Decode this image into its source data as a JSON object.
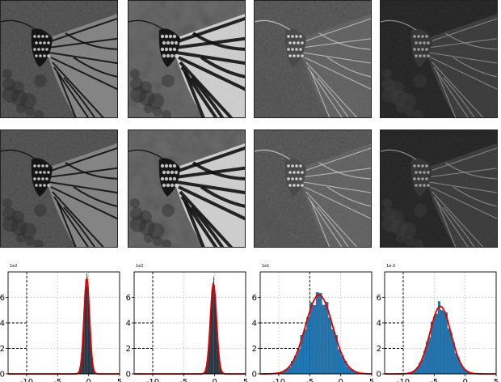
{
  "figure": {
    "rows": [
      {
        "name": "row-1-images"
      },
      {
        "name": "row-2-images"
      }
    ],
    "image_styles": [
      {
        "style": "noisy"
      },
      {
        "style": "sharp"
      },
      {
        "style": "edge"
      },
      {
        "style": "edge-fine"
      }
    ]
  },
  "chart_data": [
    {
      "type": "bar",
      "title": "",
      "exponent_label": "1e2",
      "xlim": [
        -13,
        5
      ],
      "ylim": [
        0,
        8
      ],
      "xticks": [
        "-10",
        "-5",
        "0",
        "5"
      ],
      "xtick_values": [
        -10,
        -5,
        0,
        5
      ],
      "yticks": [
        "0",
        "2",
        "4",
        "6"
      ],
      "ytick_values": [
        0,
        2,
        4,
        6
      ],
      "bar_color": "#1f1f1f",
      "curve_color": "#e00000",
      "curve": {
        "mean": -0.3,
        "std": 0.45,
        "peak": 7.5
      },
      "vline_x": -10,
      "hline_y": [
        2,
        4
      ]
    },
    {
      "type": "bar",
      "title": "",
      "exponent_label": "1e2",
      "xlim": [
        -13,
        5
      ],
      "ylim": [
        0,
        8
      ],
      "xticks": [
        "-10",
        "-5",
        "0",
        "5"
      ],
      "xtick_values": [
        -10,
        -5,
        0,
        5
      ],
      "yticks": [
        "0",
        "2",
        "4",
        "6"
      ],
      "ytick_values": [
        0,
        2,
        4,
        6
      ],
      "bar_color": "#1f1f1f",
      "curve_color": "#e00000",
      "curve": {
        "mean": -0.2,
        "std": 0.5,
        "peak": 7.1
      },
      "vline_x": -10,
      "hline_y": [
        2,
        4
      ]
    },
    {
      "type": "bar",
      "title": "",
      "exponent_label": "1e1",
      "xlim": [
        -13,
        5
      ],
      "ylim": [
        0,
        8
      ],
      "xticks": [
        "-10",
        "-5",
        "0",
        "5"
      ],
      "xtick_values": [
        -10,
        -5,
        0,
        5
      ],
      "yticks": [
        "0",
        "2",
        "4",
        "6"
      ],
      "ytick_values": [
        0,
        2,
        4,
        6
      ],
      "bar_color": "#1f77b4",
      "curve_color": "#e00000",
      "curve": {
        "mean": -3.5,
        "std": 2.2,
        "peak": 6.2
      },
      "vline_x": -5,
      "hline_y": [
        2,
        4
      ]
    },
    {
      "type": "bar",
      "title": "",
      "exponent_label": "1e-2",
      "xlim": [
        -13,
        5
      ],
      "ylim": [
        0,
        8
      ],
      "xticks": [
        "-10",
        "-5",
        "0",
        "5"
      ],
      "xtick_values": [
        -10,
        -5,
        0,
        5
      ],
      "yticks": [
        "0",
        "2",
        "4",
        "6"
      ],
      "ytick_values": [
        0,
        2,
        4,
        6
      ],
      "bar_color": "#1f77b4",
      "curve_color": "#e00000",
      "curve": {
        "mean": -4.0,
        "std": 1.7,
        "peak": 5.3
      },
      "vline_x": -10,
      "hline_y": [
        2,
        4
      ]
    }
  ]
}
